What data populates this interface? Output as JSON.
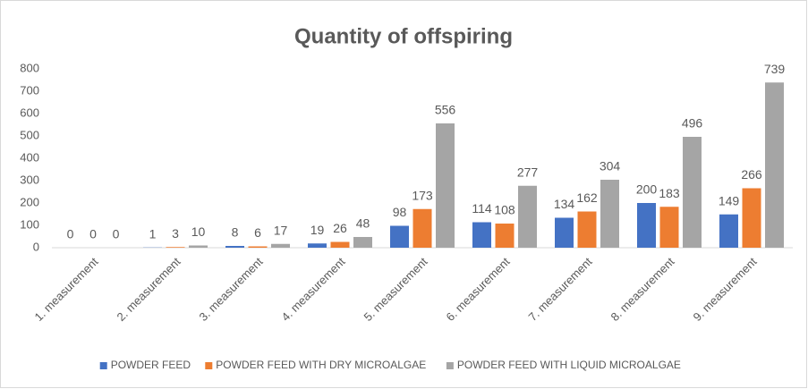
{
  "chart_data": {
    "type": "bar",
    "title": "Quantity of offspiring",
    "categories": [
      "1. measurement",
      "2. measurement",
      "3. measurement",
      "4. measurement",
      "5. measurement",
      "6. measurement",
      "7. measurement",
      "8. measurement",
      "9. measurement"
    ],
    "series": [
      {
        "name": "POWDER FEED",
        "color": "#4472c4",
        "values": [
          0,
          1,
          8,
          19,
          98,
          114,
          134,
          200,
          149
        ]
      },
      {
        "name": "POWDER FEED WITH DRY MICROALGAE",
        "color": "#ed7d31",
        "values": [
          0,
          3,
          6,
          26,
          173,
          108,
          162,
          183,
          266
        ]
      },
      {
        "name": "POWDER FEED WITH LIQUID MICROALGAE",
        "color": "#a5a5a5",
        "values": [
          0,
          10,
          17,
          48,
          556,
          277,
          304,
          496,
          739
        ]
      }
    ],
    "ylim": [
      0,
      800
    ],
    "yticks": [
      0,
      100,
      200,
      300,
      400,
      500,
      600,
      700,
      800
    ],
    "grid": false,
    "legend": "bottom"
  }
}
